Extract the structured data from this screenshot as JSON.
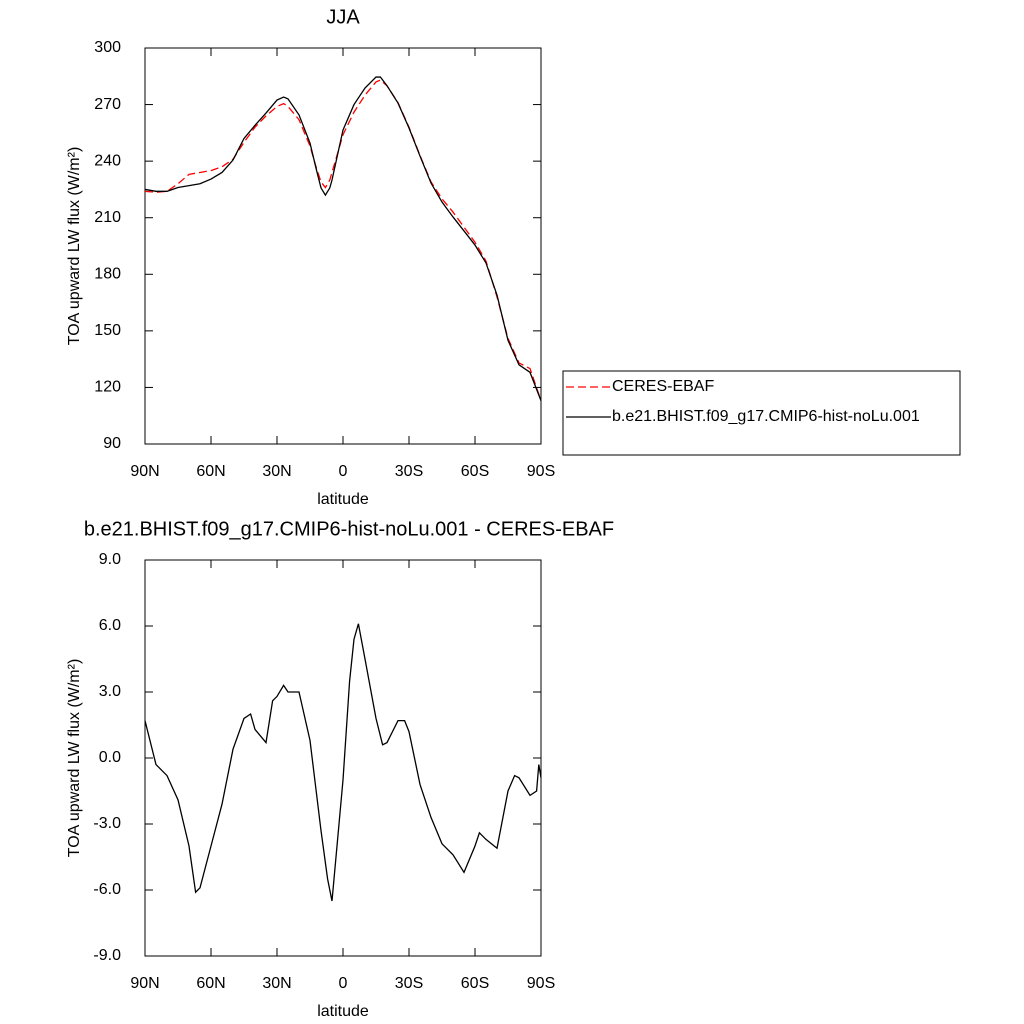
{
  "chart_data": [
    {
      "type": "line",
      "title": "JJA",
      "xlabel": "latitude",
      "ylabel": "TOA upward LW flux (W/m²)",
      "x": [
        90,
        85,
        80,
        75,
        70,
        65,
        60,
        55,
        50,
        45,
        40,
        35,
        30,
        27,
        25,
        20,
        15,
        12,
        10,
        8,
        6,
        5,
        0,
        -5,
        -10,
        -15,
        -17,
        -20,
        -25,
        -30,
        -35,
        -40,
        -45,
        -50,
        -55,
        -60,
        -65,
        -70,
        -75,
        -80,
        -85,
        -90
      ],
      "xlim": [
        90,
        -90
      ],
      "xticks": [
        {
          "value": 90,
          "label": "90N"
        },
        {
          "value": 60,
          "label": "60N"
        },
        {
          "value": 30,
          "label": "30N"
        },
        0,
        {
          "value": -30,
          "label": "30S"
        },
        {
          "value": -60,
          "label": "60S"
        },
        {
          "value": -90,
          "label": "90S"
        }
      ],
      "ylim": [
        90,
        300
      ],
      "yticks": [
        90,
        120,
        150,
        180,
        210,
        240,
        270,
        300
      ],
      "legend": "right",
      "series": [
        {
          "name": "CERES-EBAF",
          "color": "#ff0000",
          "dashed": true,
          "values": [
            224,
            223.5,
            224,
            228,
            233,
            234,
            235,
            237,
            241,
            250,
            258,
            264,
            269,
            270.5,
            269,
            262,
            248,
            236,
            229,
            226,
            230,
            234,
            254,
            266,
            275,
            282,
            283,
            280,
            271,
            258,
            243,
            229,
            220,
            213,
            205,
            197,
            187,
            168,
            146,
            133,
            130,
            113
          ]
        },
        {
          "name": "b.e21.BHIST.f09_g17.CMIP6-hist-noLu.001",
          "color": "#000000",
          "dashed": false,
          "values": [
            225,
            224,
            224,
            226,
            227,
            228,
            230.5,
            234,
            240.6,
            252,
            259,
            265.5,
            272.4,
            274,
            273,
            264.5,
            249.6,
            235,
            225.8,
            222,
            225.8,
            230,
            256.5,
            270,
            278.8,
            284.6,
            284.6,
            280,
            270.8,
            257.6,
            242.7,
            228.4,
            218.3,
            210.4,
            203,
            195.5,
            186,
            169,
            145,
            132,
            128,
            113
          ]
        }
      ]
    },
    {
      "type": "line",
      "title": "b.e21.BHIST.f09_g17.CMIP6-hist-noLu.001 - CERES-EBAF",
      "xlabel": "latitude",
      "ylabel": "TOA upward LW flux (W/m²)",
      "x": [
        90,
        85,
        80,
        75,
        70,
        67,
        65,
        60,
        55,
        50,
        45,
        42,
        40,
        35,
        32,
        30,
        27,
        25,
        20,
        15,
        10,
        7,
        5,
        0,
        -3,
        -5,
        -7,
        -10,
        -15,
        -18,
        -20,
        -25,
        -28,
        -30,
        -35,
        -40,
        -45,
        -50,
        -55,
        -60,
        -62,
        -65,
        -70,
        -75,
        -78,
        -80,
        -85,
        -88,
        -89,
        -90
      ],
      "xlim": [
        90,
        -90
      ],
      "xticks": [
        {
          "value": 90,
          "label": "90N"
        },
        {
          "value": 60,
          "label": "60N"
        },
        {
          "value": 30,
          "label": "30N"
        },
        0,
        {
          "value": -30,
          "label": "30S"
        },
        {
          "value": -60,
          "label": "60S"
        },
        {
          "value": -90,
          "label": "90S"
        }
      ],
      "ylim": [
        -9,
        9
      ],
      "yticks": [
        {
          "value": -9,
          "label": "-9.0"
        },
        {
          "value": -6,
          "label": "-6.0"
        },
        {
          "value": -3,
          "label": "-3.0"
        },
        {
          "value": 0,
          "label": "0.0"
        },
        {
          "value": 3,
          "label": "3.0"
        },
        {
          "value": 6,
          "label": "6.0"
        },
        {
          "value": 9,
          "label": "9.0"
        }
      ],
      "series": [
        {
          "color": "#000000",
          "dashed": false,
          "values": [
            1.7,
            -0.3,
            -0.8,
            -1.9,
            -4,
            -6.1,
            -5.9,
            -4,
            -2.1,
            0.4,
            1.8,
            2.0,
            1.3,
            0.7,
            2.6,
            2.8,
            3.3,
            3.0,
            3.0,
            0.8,
            -3.3,
            -5.5,
            -6.5,
            -1.0,
            3.5,
            5.4,
            6.1,
            4.5,
            1.8,
            0.6,
            0.7,
            1.7,
            1.7,
            1.2,
            -1.2,
            -2.7,
            -3.9,
            -4.4,
            -5.2,
            -4,
            -3.4,
            -3.7,
            -4.1,
            -1.5,
            -0.8,
            -0.9,
            -1.7,
            -1.5,
            -0.3,
            -0.9
          ]
        }
      ]
    }
  ]
}
